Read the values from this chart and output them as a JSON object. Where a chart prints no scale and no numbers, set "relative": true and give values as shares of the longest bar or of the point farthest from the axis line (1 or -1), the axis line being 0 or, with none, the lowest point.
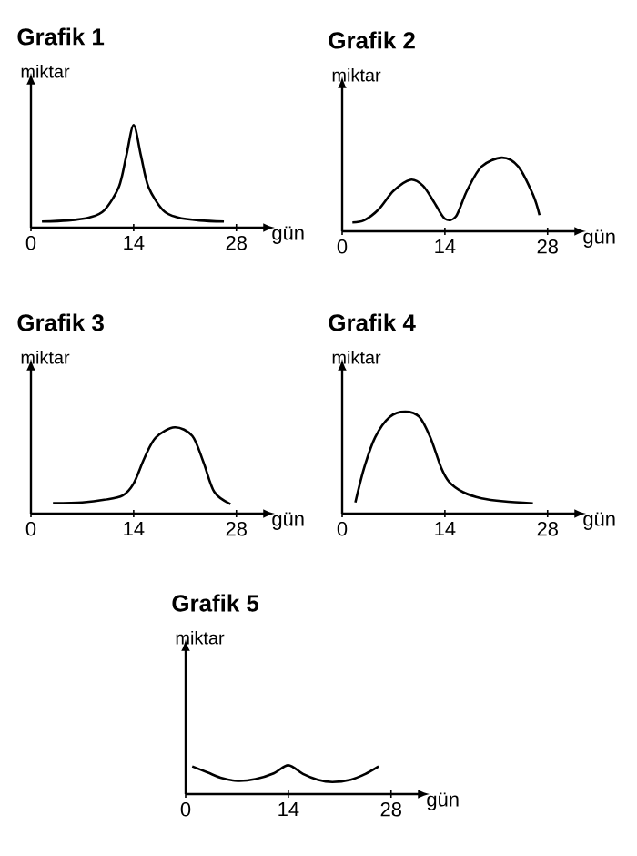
{
  "chart_data": [
    {
      "type": "line",
      "title": "Grafik 1",
      "ylabel": "miktar",
      "xlabel": "gün",
      "relative": true,
      "color": "#000000",
      "xlim": [
        0,
        32
      ],
      "xticks": [
        0,
        14,
        28
      ],
      "x": [
        1.5,
        5,
        8,
        10,
        12,
        13,
        14,
        15,
        16,
        18,
        20,
        23,
        26.3
      ],
      "values": [
        0.06,
        0.07,
        0.1,
        0.17,
        0.4,
        0.7,
        1.0,
        0.7,
        0.4,
        0.17,
        0.1,
        0.07,
        0.06
      ]
    },
    {
      "type": "line",
      "title": "Grafik 2",
      "ylabel": "miktar",
      "xlabel": "gün",
      "relative": true,
      "color": "#000000",
      "xlim": [
        0,
        32
      ],
      "xticks": [
        0,
        14,
        28
      ],
      "x": [
        1.4,
        3,
        5,
        7,
        9.3,
        11,
        12.5,
        14,
        15.5,
        17,
        19,
        21.8,
        24,
        26,
        26.9
      ],
      "values": [
        0.12,
        0.15,
        0.3,
        0.55,
        0.7,
        0.62,
        0.4,
        0.17,
        0.2,
        0.55,
        0.88,
        1.0,
        0.88,
        0.5,
        0.22
      ]
    },
    {
      "type": "line",
      "title": "Grafik 3",
      "ylabel": "miktar",
      "xlabel": "gün",
      "relative": true,
      "color": "#000000",
      "xlim": [
        0,
        32
      ],
      "xticks": [
        0,
        14,
        28
      ],
      "x": [
        3,
        7,
        10,
        12.5,
        14,
        15.5,
        17,
        19.6,
        22,
        23.5,
        25,
        27.2
      ],
      "values": [
        0.12,
        0.13,
        0.16,
        0.21,
        0.35,
        0.65,
        0.88,
        1.0,
        0.9,
        0.6,
        0.25,
        0.11
      ]
    },
    {
      "type": "line",
      "title": "Grafik 4",
      "ylabel": "miktar",
      "xlabel": "gün",
      "relative": true,
      "color": "#000000",
      "xlim": [
        0,
        32
      ],
      "xticks": [
        0,
        14,
        28
      ],
      "x": [
        1.8,
        3,
        4.5,
        6.5,
        8.6,
        10.5,
        12,
        13.5,
        14.6,
        16.5,
        19,
        22,
        26
      ],
      "values": [
        0.11,
        0.45,
        0.75,
        0.95,
        1.0,
        0.95,
        0.75,
        0.45,
        0.31,
        0.21,
        0.15,
        0.12,
        0.1
      ]
    },
    {
      "type": "line",
      "title": "Grafik 5",
      "ylabel": "miktar",
      "xlabel": "gün",
      "relative": true,
      "color": "#000000",
      "xlim": [
        0,
        32
      ],
      "xticks": [
        0,
        14,
        28
      ],
      "x": [
        0.9,
        3,
        5,
        7.1,
        9.5,
        12,
        14,
        16,
        18,
        20,
        22.5,
        24.5,
        26.3
      ],
      "values": [
        0.96,
        0.75,
        0.55,
        0.46,
        0.52,
        0.72,
        1.0,
        0.7,
        0.5,
        0.42,
        0.5,
        0.7,
        0.96
      ]
    }
  ]
}
